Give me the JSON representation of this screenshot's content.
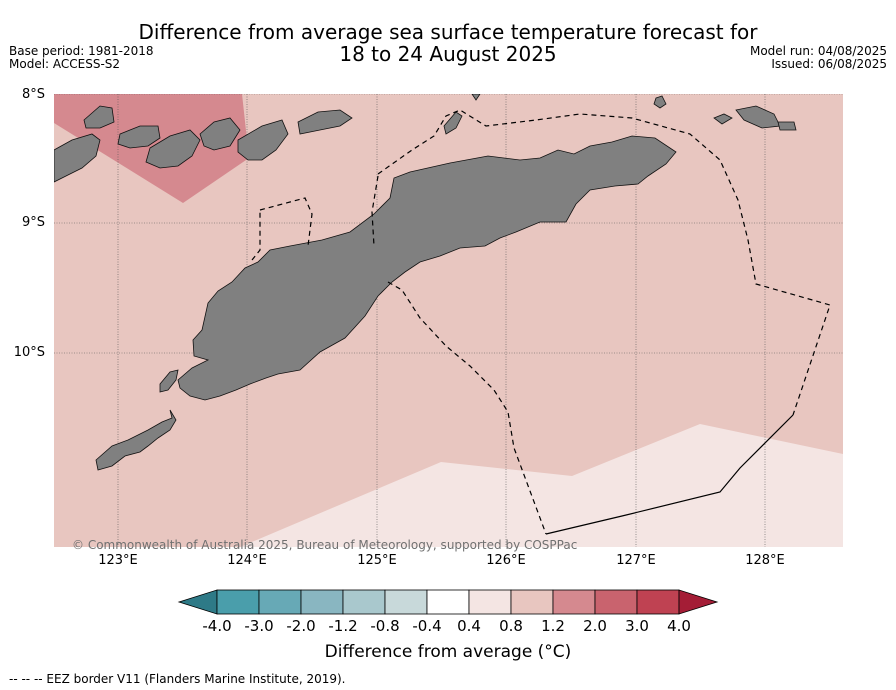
{
  "title": {
    "line1": "Difference from average sea surface temperature forecast for",
    "line2": "18 to 24 August 2025"
  },
  "meta_left": {
    "base_period": "Base period: 1981-2018",
    "model": "Model: ACCESS-S2"
  },
  "meta_right": {
    "model_run": "Model run: 04/08/2025",
    "issued": "Issued: 06/08/2025"
  },
  "map": {
    "lat_labels": [
      "8°S",
      "9°S",
      "10°S"
    ],
    "lon_labels": [
      "123°E",
      "124°E",
      "125°E",
      "126°E",
      "127°E",
      "128°E"
    ],
    "extent": {
      "lon": [
        122.5,
        128.6
      ],
      "lat": [
        -11.5,
        -8.0
      ]
    },
    "land_color": "#808080",
    "copyright": "© Commonwealth of Australia 2025, Bureau of Meteorology, supported by COSPPac"
  },
  "colorbar": {
    "ticks": [
      "-4.0",
      "-3.0",
      "-2.0",
      "-1.2",
      "-0.8",
      "-0.4",
      "0.4",
      "0.8",
      "1.2",
      "2.0",
      "3.0",
      "4.0"
    ],
    "colors": [
      "#2e7a87",
      "#4a9eab",
      "#67a9b6",
      "#89b6c1",
      "#a9c8cd",
      "#c8d9da",
      "#ffffff",
      "#f4e5e3",
      "#e8c6c0",
      "#d5898f",
      "#c9636e",
      "#bf4252",
      "#a41d36"
    ],
    "label": "Difference from average (°C)"
  },
  "footnote": "--  --  -- EEZ border V11 (Flanders Marine Institute, 2019)."
}
